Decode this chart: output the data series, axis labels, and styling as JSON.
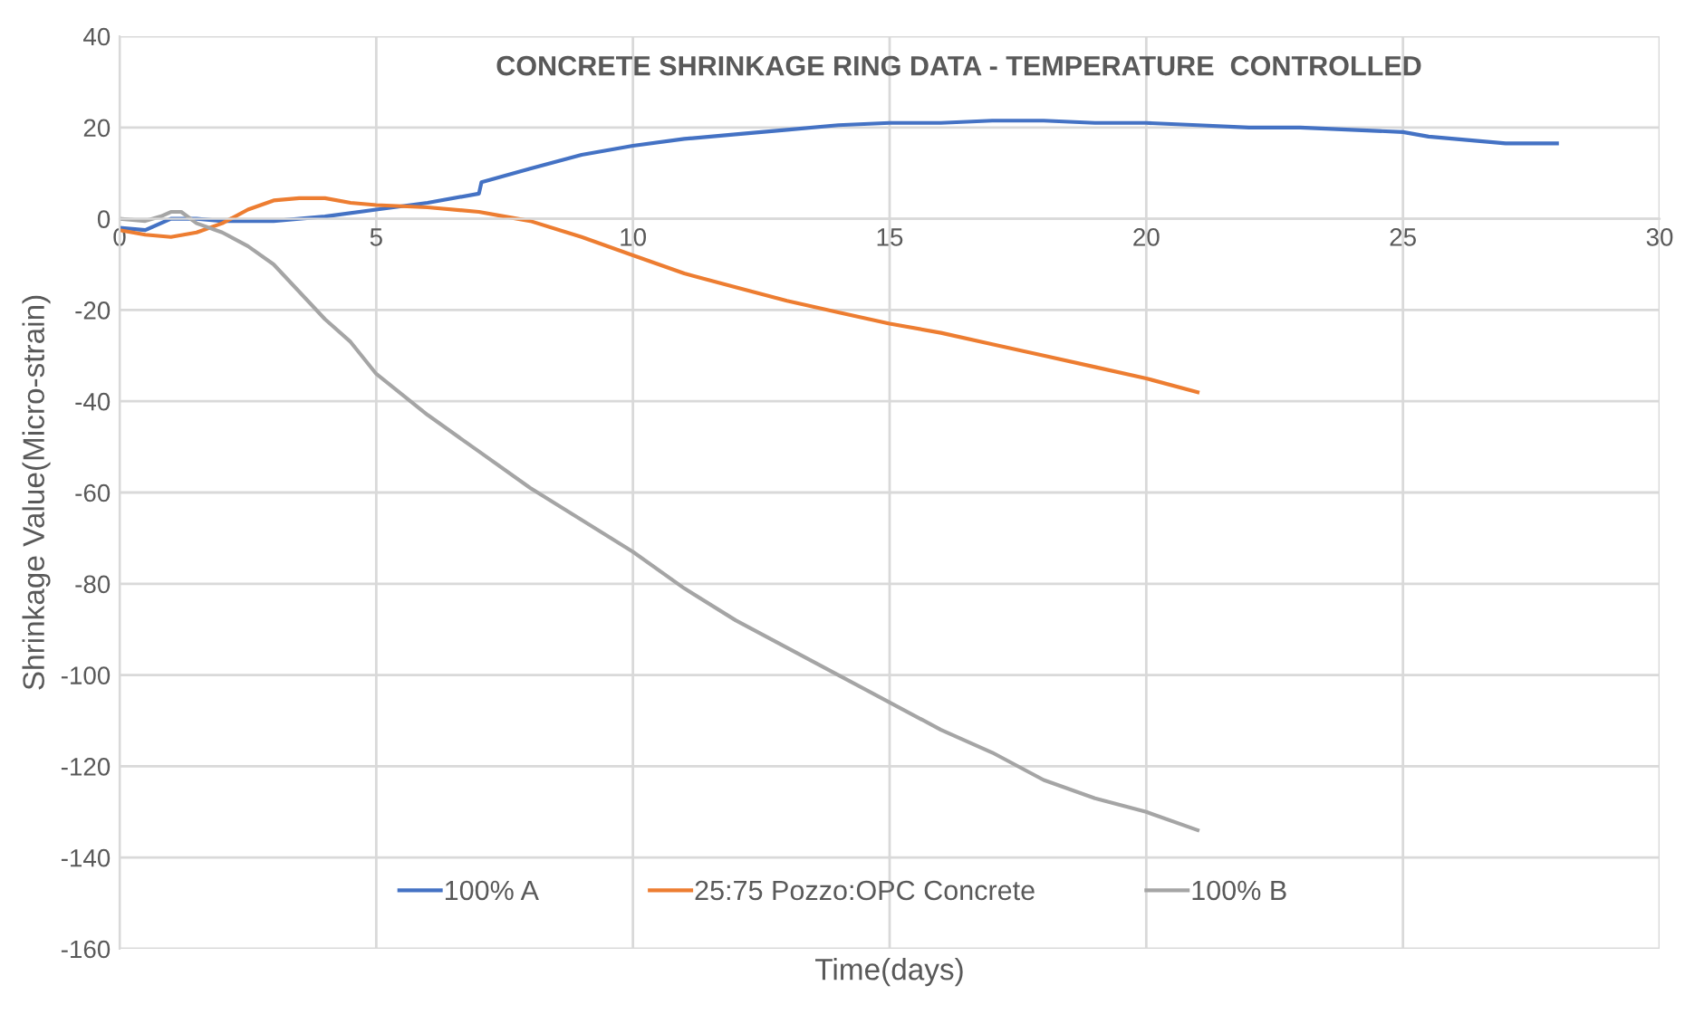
{
  "chart_data": {
    "type": "line",
    "title": "CONCRETE SHRINKAGE RING DATA - TEMPERATURE  CONTROLLED",
    "xlabel": "Time(days)",
    "ylabel": "Shrinkage Value(Micro-strain)",
    "xlim": [
      0,
      30
    ],
    "xticks": [
      0,
      5,
      10,
      15,
      20,
      25,
      30
    ],
    "ylim": [
      -160,
      40
    ],
    "yticks": [
      -160,
      -140,
      -120,
      -100,
      -80,
      -60,
      -40,
      -20,
      0,
      20,
      40
    ],
    "grid": true,
    "legend": "bottom",
    "marker": "none",
    "line_style": "solid",
    "series": [
      {
        "name": "100% A",
        "color": "#4472c4",
        "x": [
          0,
          0.5,
          1,
          1.5,
          2,
          3,
          4,
          5,
          6,
          7,
          7.05,
          8,
          9,
          9.5,
          10,
          11,
          12,
          13,
          14,
          15,
          16,
          17,
          18,
          19,
          20,
          21,
          22,
          23,
          24,
          25,
          25.5,
          26,
          27,
          28
        ],
        "values": [
          -2,
          -2.5,
          0,
          0,
          -0.5,
          -0.5,
          0.5,
          2,
          3.5,
          5.5,
          8,
          11,
          14,
          15,
          16,
          17.5,
          18.5,
          19.5,
          20.5,
          21,
          21,
          21.5,
          21.5,
          21,
          21,
          20.5,
          20,
          20,
          19.5,
          19,
          18,
          17.5,
          16.5,
          16.5
        ]
      },
      {
        "name": "25:75 Pozzo:OPC Concrete",
        "color": "#ed7d31",
        "x": [
          0,
          0.5,
          1,
          1.5,
          2,
          2.5,
          3,
          3.5,
          4,
          4.5,
          5,
          6,
          7,
          7.5,
          8,
          9,
          10,
          11,
          12,
          13,
          14,
          15,
          16,
          17,
          18,
          19,
          20,
          21
        ],
        "values": [
          -2.5,
          -3.5,
          -4,
          -3,
          -1,
          2,
          4,
          4.5,
          4.5,
          3.5,
          3,
          2.5,
          1.5,
          0.5,
          -0.5,
          -4,
          -8,
          -12,
          -15,
          -18,
          -20.5,
          -23,
          -25,
          -27.5,
          -30,
          -32.5,
          -35,
          -38
        ]
      },
      {
        "name": "100% B",
        "color": "#a5a5a5",
        "x": [
          0,
          0.5,
          0.8,
          1,
          1.2,
          1.5,
          2,
          2.5,
          3,
          3.5,
          4,
          4.5,
          5,
          6,
          7,
          8,
          9,
          10,
          11,
          12,
          13,
          14,
          15,
          16,
          17,
          18,
          19,
          20,
          21
        ],
        "values": [
          0,
          -0.5,
          0.5,
          1.5,
          1.5,
          -1,
          -3,
          -6,
          -10,
          -16,
          -22,
          -27,
          -34,
          -43,
          -51,
          -59,
          -66,
          -73,
          -81,
          -88,
          -94,
          -100,
          -106,
          -112,
          -117,
          -123,
          -127,
          -130,
          -134
        ]
      }
    ]
  }
}
